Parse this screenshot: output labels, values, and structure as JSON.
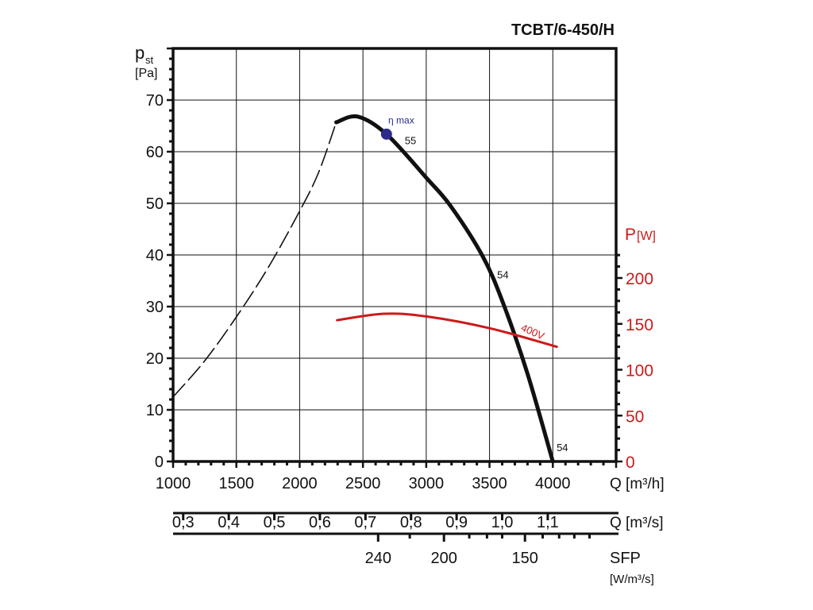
{
  "chart_data": {
    "type": "line",
    "title": "TCBT/6-450/H",
    "y_label": "p",
    "y_label_sub": "st",
    "y_unit": "[Pa]",
    "y2_label": "P",
    "y2_unit": "[W]",
    "xlim": [
      1000,
      4500
    ],
    "ylim": [
      0,
      80
    ],
    "y2lim": [
      0,
      225
    ],
    "grid": true,
    "x_ticks": [
      1000,
      1500,
      2000,
      2500,
      3000,
      3500,
      4000
    ],
    "x_tick_labels": [
      "1000",
      "1500",
      "2000",
      "2500",
      "3000",
      "3500",
      "4000"
    ],
    "x_label": "Q [m³/h]",
    "y_ticks": [
      0,
      10,
      20,
      30,
      40,
      50,
      60,
      70
    ],
    "y_tick_labels": [
      "0",
      "10",
      "20",
      "30",
      "40",
      "50",
      "60",
      "70"
    ],
    "y2_ticks": [
      0,
      50,
      100,
      150,
      200
    ],
    "y2_tick_labels": [
      "0",
      "50",
      "100",
      "150",
      "200"
    ],
    "secondary_axis_m3s": {
      "label": "Q [m³/s]",
      "values": [
        0.3,
        0.4,
        0.5,
        0.6,
        0.7,
        0.8,
        0.9,
        1.0,
        1.1
      ],
      "labels": [
        "0,3",
        "0,4",
        "0,5",
        "0,6",
        "0,7",
        "0,8",
        "0,9",
        "1,0",
        "1,1"
      ]
    },
    "sfp_axis": {
      "label": "SFP",
      "unit": "[W/m³/s]",
      "labeled": [
        {
          "q": 2620,
          "label": "240"
        },
        {
          "q": 3140,
          "label": "200"
        },
        {
          "q": 3780,
          "label": "150"
        }
      ],
      "minor_q": [
        2870,
        3340,
        3480,
        3600,
        3920,
        4050,
        4170,
        4290
      ]
    },
    "series": [
      {
        "name": "pressure-unstable",
        "style": "dashed",
        "color": "#111111",
        "x": [
          1000,
          1250,
          1500,
          1750,
          2000,
          2150,
          2289
        ],
        "y": [
          12.5,
          19.5,
          28,
          37.5,
          48.5,
          56,
          65.7
        ]
      },
      {
        "name": "pressure",
        "style": "solid",
        "color": "#111111",
        "x": [
          2289,
          2459,
          2686,
          3006,
          3195,
          3447,
          3610,
          3800,
          4000
        ],
        "y": [
          65.7,
          66.8,
          63.4,
          54.8,
          49.4,
          39.7,
          30.5,
          17,
          0
        ]
      },
      {
        "name": "power 400V",
        "axis": "y2",
        "style": "solid",
        "color": "#cc1a1a",
        "x": [
          2296,
          2667,
          3006,
          3509,
          4031
        ],
        "y": [
          154,
          161,
          158,
          145,
          125
        ]
      }
    ],
    "annotations": [
      {
        "text": "η max",
        "q": 2700,
        "p": 65.5,
        "kind": "label-eta"
      },
      {
        "text": "55",
        "q": 2830,
        "p": 61.5,
        "kind": "label"
      },
      {
        "text": "54",
        "q": 3560,
        "p": 35.5,
        "kind": "label"
      },
      {
        "text": "54",
        "q": 4030,
        "p": 2,
        "kind": "label"
      },
      {
        "text": "400V",
        "q": 3830,
        "p": 24.5,
        "kind": "label-red"
      }
    ],
    "eta_max_point": {
      "q": 2686,
      "p": 63.4
    },
    "colors": {
      "axis": "#111111",
      "power": "#cc1a1a",
      "eta": "#2b2b8c"
    }
  }
}
